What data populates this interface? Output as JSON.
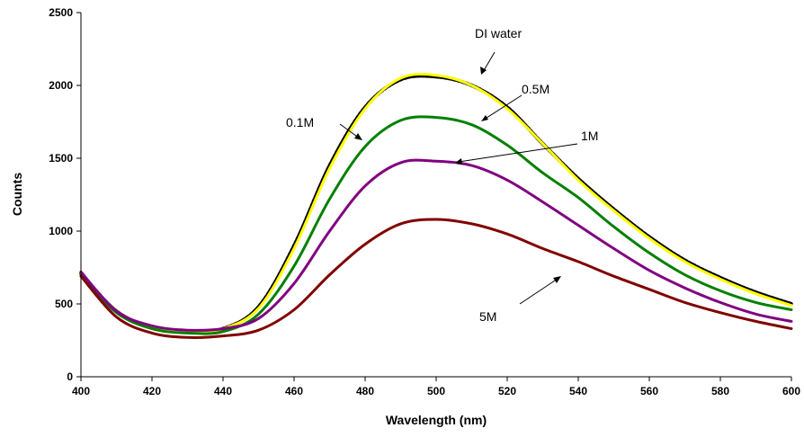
{
  "chart_data": {
    "type": "line",
    "title": "",
    "xlabel": "Wavelength (nm)",
    "ylabel": "Counts",
    "xlim": [
      400,
      600
    ],
    "ylim": [
      0,
      2500
    ],
    "x_ticks": [
      400,
      420,
      440,
      460,
      480,
      500,
      520,
      540,
      560,
      580,
      600
    ],
    "y_ticks": [
      0,
      500,
      1000,
      1500,
      2000,
      2500
    ],
    "x_tick_labels": [
      "400",
      "420",
      "440",
      "460",
      "480",
      "500",
      "520",
      "540",
      "560",
      "580",
      "600"
    ],
    "y_tick_labels": [
      "0",
      "500",
      "1000",
      "1500",
      "2000",
      "2500"
    ],
    "grid": false,
    "legend": "none",
    "x": [
      400,
      410,
      420,
      430,
      440,
      450,
      460,
      470,
      480,
      490,
      500,
      510,
      520,
      530,
      540,
      550,
      560,
      570,
      580,
      590,
      600
    ],
    "series": [
      {
        "name": "DI water",
        "color": "#000000",
        "values": [
          710,
          450,
          340,
          310,
          330,
          480,
          900,
          1450,
          1850,
          2040,
          2060,
          2000,
          1850,
          1600,
          1360,
          1150,
          960,
          800,
          680,
          580,
          500
        ]
      },
      {
        "name": "0.1M",
        "color": "#ffff00",
        "values": [
          710,
          450,
          340,
          310,
          330,
          470,
          880,
          1430,
          1840,
          2050,
          2070,
          2000,
          1840,
          1600,
          1350,
          1140,
          950,
          790,
          670,
          570,
          490
        ]
      },
      {
        "name": "0.5M",
        "color": "#008000",
        "values": [
          700,
          440,
          330,
          300,
          310,
          430,
          760,
          1220,
          1580,
          1760,
          1780,
          1730,
          1590,
          1400,
          1230,
          1030,
          850,
          700,
          590,
          510,
          460
        ]
      },
      {
        "name": "1M",
        "color": "#800080",
        "values": [
          720,
          450,
          350,
          320,
          330,
          400,
          640,
          1000,
          1310,
          1470,
          1480,
          1450,
          1350,
          1200,
          1040,
          880,
          730,
          610,
          510,
          430,
          380
        ]
      },
      {
        "name": "5M",
        "color": "#800000",
        "values": [
          690,
          410,
          300,
          270,
          280,
          320,
          460,
          700,
          910,
          1050,
          1080,
          1050,
          980,
          880,
          790,
          690,
          600,
          510,
          440,
          380,
          330
        ]
      }
    ],
    "annotations": [
      {
        "text": "DI water"
      },
      {
        "text": "0.5M"
      },
      {
        "text": "0.1M"
      },
      {
        "text": "1M"
      },
      {
        "text": "5M"
      }
    ]
  }
}
